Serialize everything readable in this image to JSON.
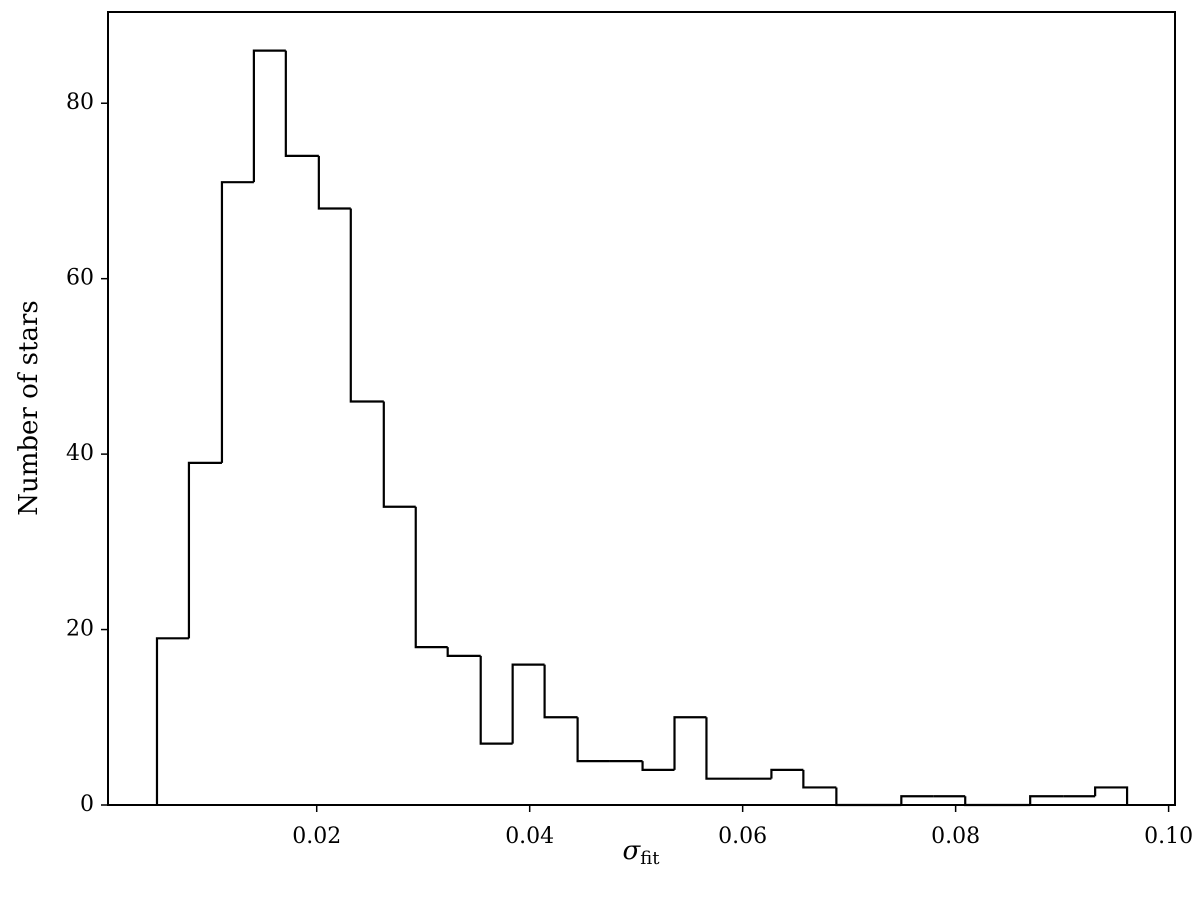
{
  "chart_data": {
    "type": "histogram",
    "x_label": {
      "base": "σ",
      "subscript": "fit"
    },
    "y_label": "Number of stars",
    "bins": [
      0.005,
      0.008,
      0.0111,
      0.0141,
      0.0171,
      0.0202,
      0.0232,
      0.0263,
      0.0293,
      0.0323,
      0.0354,
      0.0384,
      0.0414,
      0.0445,
      0.0475,
      0.0506,
      0.0536,
      0.0566,
      0.0597,
      0.0627,
      0.0657,
      0.0688,
      0.0718,
      0.0749,
      0.0779,
      0.0809,
      0.084,
      0.087,
      0.0901,
      0.0931,
      0.0961
    ],
    "values": [
      19,
      39,
      71,
      86,
      74,
      68,
      46,
      34,
      18,
      17,
      7,
      16,
      10,
      5,
      5,
      4,
      10,
      3,
      3,
      4,
      2,
      0,
      0,
      1,
      1,
      0,
      0,
      1,
      1,
      2
    ],
    "color": "#000000",
    "xlim": [
      0.0004,
      0.1006
    ],
    "ylim": [
      0,
      90.4
    ],
    "xticks": [
      0.02,
      0.04,
      0.06,
      0.08,
      {
        "value": 0.1,
        "label": "0.10"
      }
    ],
    "yticks": [
      0,
      20,
      40,
      60,
      80
    ],
    "grid": false
  }
}
